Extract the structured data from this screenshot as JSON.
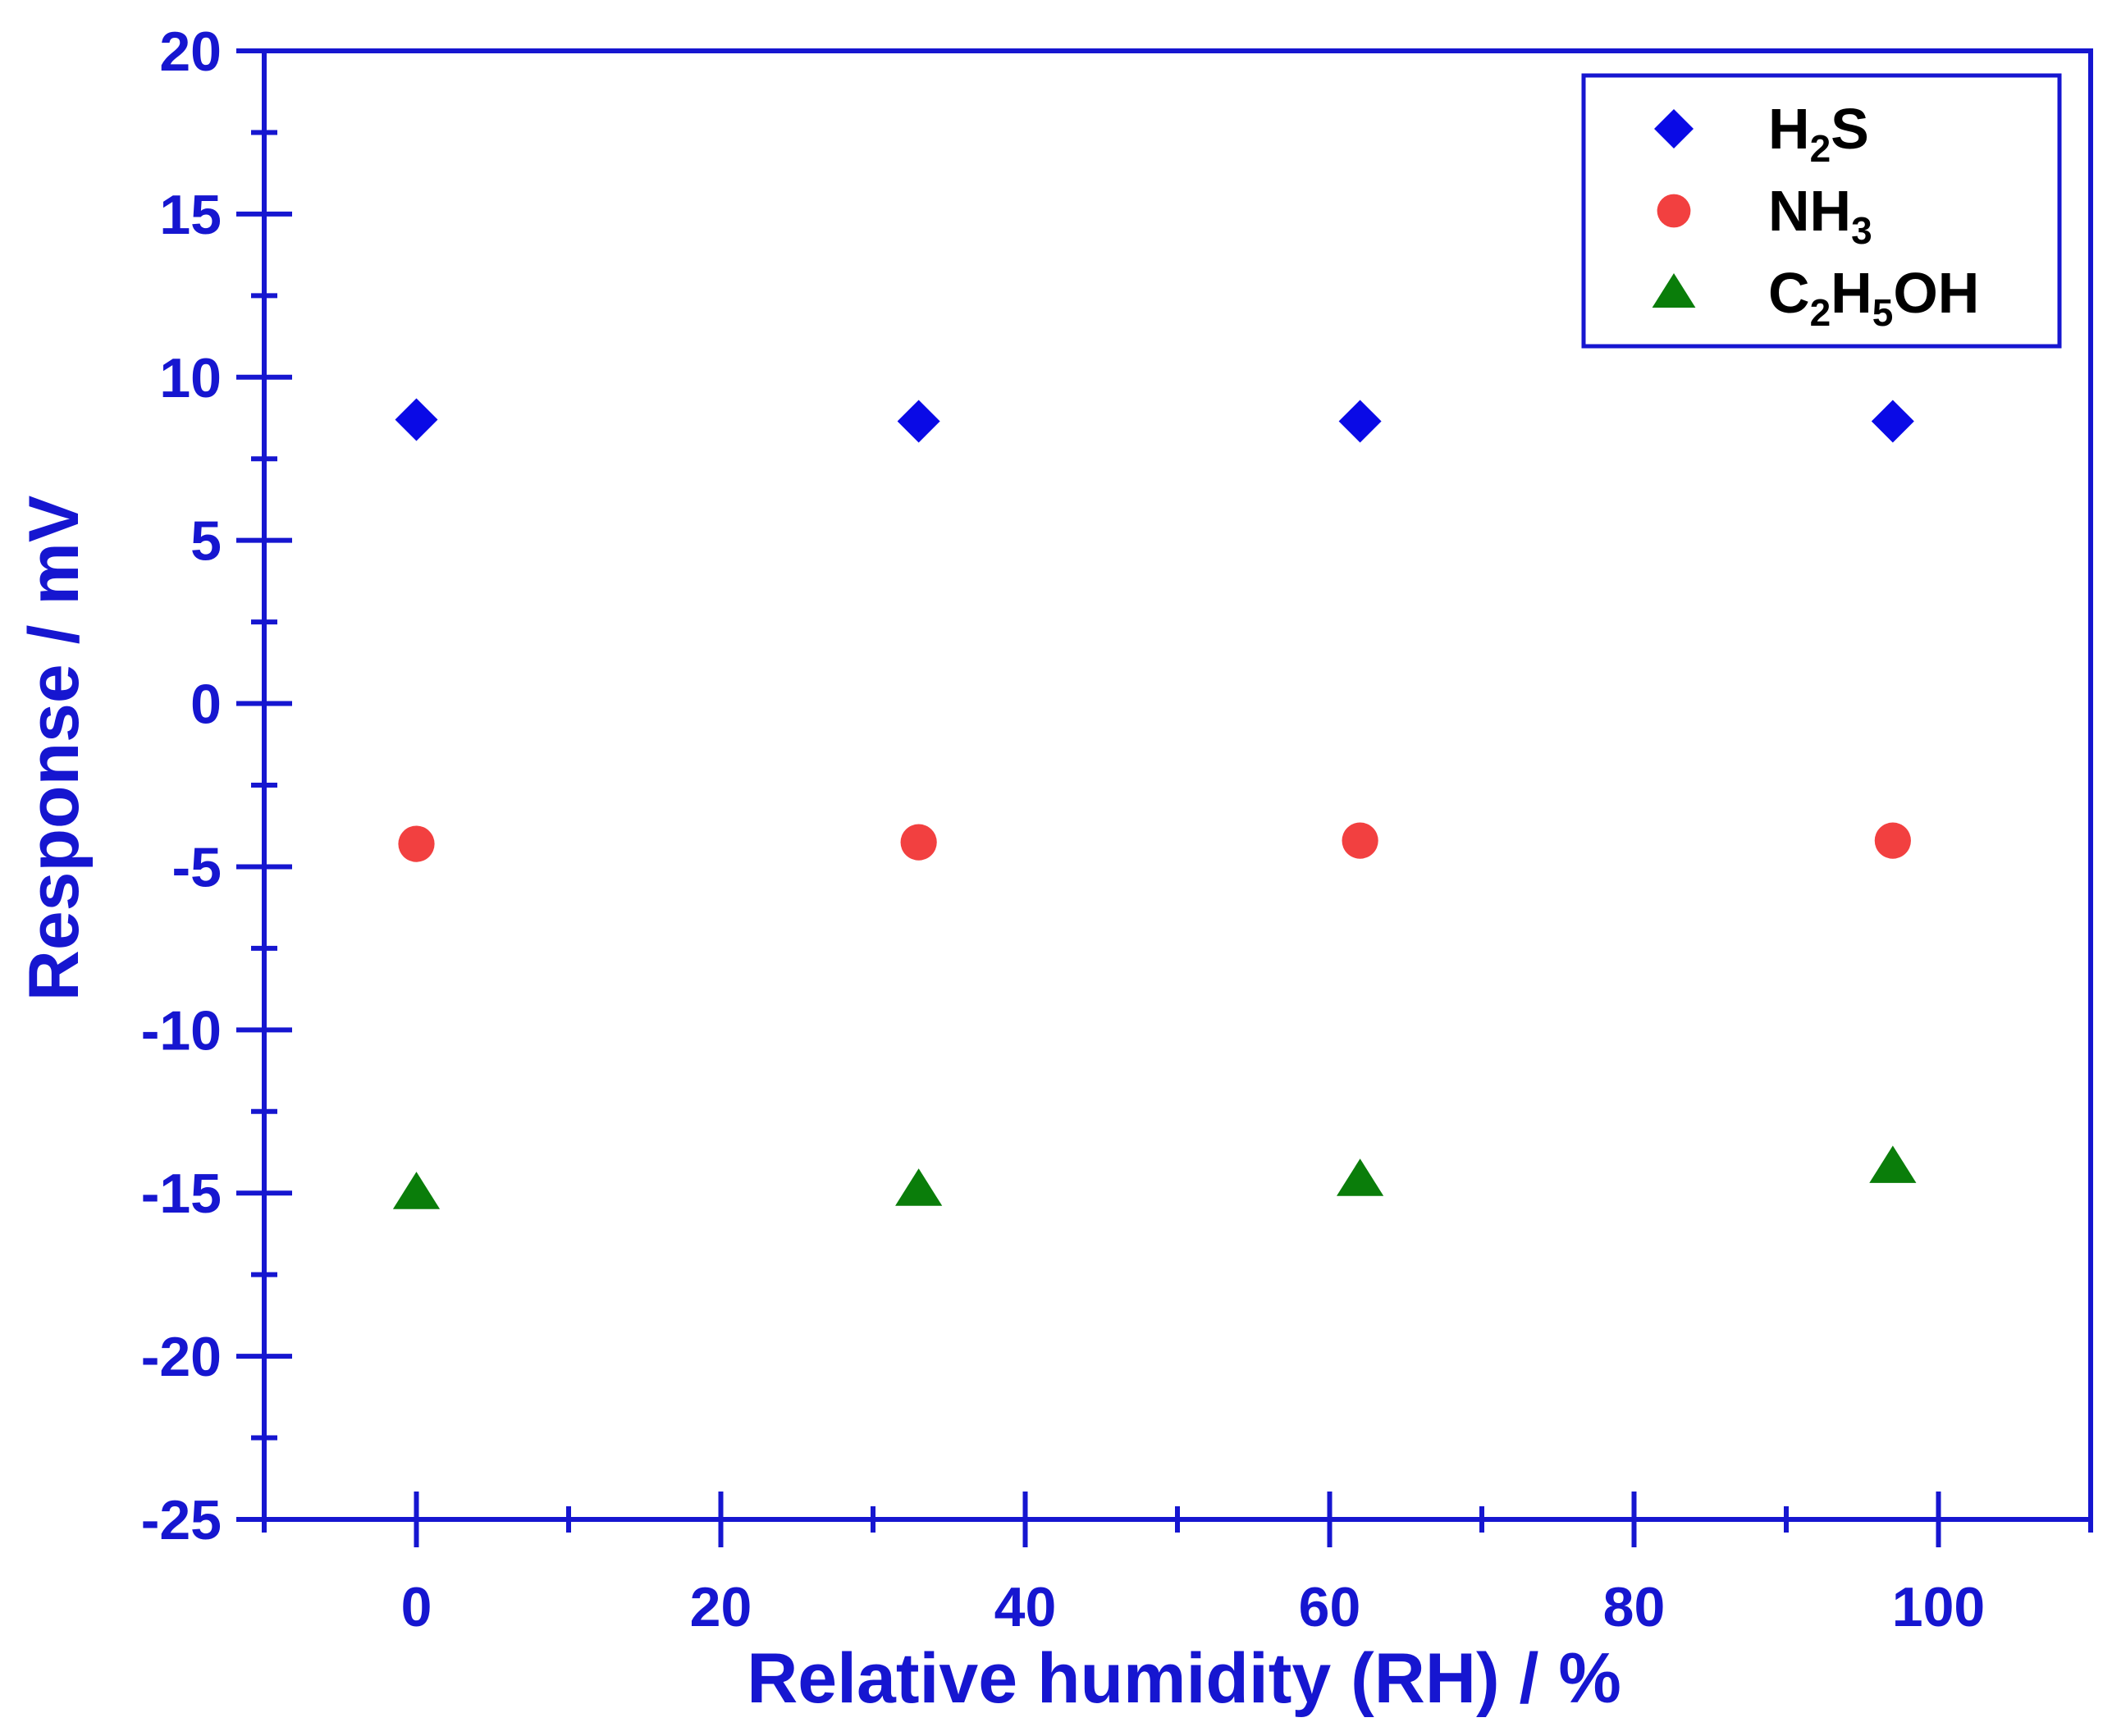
{
  "chart_data": {
    "type": "scatter",
    "title": "",
    "xlabel": "Relative humidity (RH) / %",
    "ylabel": "Response / mV",
    "xlim": [
      -10,
      110
    ],
    "ylim": [
      -25,
      20
    ],
    "x_ticks": [
      0,
      20,
      40,
      60,
      80,
      100
    ],
    "x_tick_labels": [
      "0",
      "20",
      "40",
      "60",
      "80",
      "100"
    ],
    "y_ticks": [
      -25,
      -20,
      -15,
      -10,
      -5,
      0,
      5,
      10,
      15,
      20
    ],
    "y_tick_labels": [
      "-25",
      "-20",
      "-15",
      "-10",
      "-5",
      "0",
      "5",
      "10",
      "15",
      "20"
    ],
    "grid": false,
    "legend_position": "top-right",
    "axis_color": "#1616d0",
    "series": [
      {
        "name": "H2S",
        "legend_main": "H",
        "legend_sub1": "2",
        "legend_mid": "S",
        "legend_sub2": "",
        "legend_tail": "",
        "marker": "diamond",
        "color": "#0a0ae6",
        "points": [
          {
            "x": 0,
            "y": 8.7
          },
          {
            "x": 33,
            "y": 8.65
          },
          {
            "x": 62,
            "y": 8.65
          },
          {
            "x": 97,
            "y": 8.65
          }
        ]
      },
      {
        "name": "NH3",
        "legend_main": "NH",
        "legend_sub1": "3",
        "legend_mid": "",
        "legend_sub2": "",
        "legend_tail": "",
        "marker": "circle",
        "color": "#f24040",
        "points": [
          {
            "x": 0,
            "y": -4.3
          },
          {
            "x": 33,
            "y": -4.25
          },
          {
            "x": 62,
            "y": -4.2
          },
          {
            "x": 97,
            "y": -4.2
          }
        ]
      },
      {
        "name": "C2H5OH",
        "legend_main": "C",
        "legend_sub1": "2",
        "legend_mid": "H",
        "legend_sub2": "5",
        "legend_tail": "OH",
        "marker": "triangle",
        "color": "#0a7d0a",
        "points": [
          {
            "x": 0,
            "y": -15.0
          },
          {
            "x": 33,
            "y": -14.9
          },
          {
            "x": 62,
            "y": -14.6
          },
          {
            "x": 97,
            "y": -14.2
          }
        ]
      }
    ]
  }
}
